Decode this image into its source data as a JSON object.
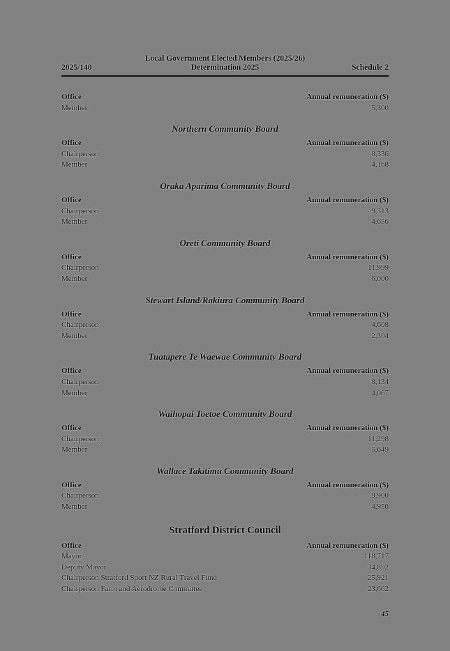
{
  "header": {
    "doc_number": "2025/140",
    "title_line1": "Local Government Elected Members (2025/26)",
    "title_line2": "Determination 2025",
    "schedule_label": "Schedule 2"
  },
  "table_columns": {
    "office": "Office",
    "remuneration": "Annual remuneration ($)"
  },
  "sections": [
    {
      "heading": "",
      "heading_style": "none",
      "rows": [
        {
          "office": "Member",
          "amount": "5,300"
        }
      ]
    },
    {
      "heading": "Northern Community Board",
      "heading_style": "board",
      "rows": [
        {
          "office": "Chairperson",
          "amount": "8,336"
        },
        {
          "office": "Member",
          "amount": "4,168"
        }
      ]
    },
    {
      "heading": "Oraka Aparima Community Board",
      "heading_style": "board",
      "rows": [
        {
          "office": "Chairperson",
          "amount": "9,313"
        },
        {
          "office": "Member",
          "amount": "4,656"
        }
      ]
    },
    {
      "heading": "Oreti Community Board",
      "heading_style": "board",
      "rows": [
        {
          "office": "Chairperson",
          "amount": "11,999"
        },
        {
          "office": "Member",
          "amount": "6,000"
        }
      ]
    },
    {
      "heading": "Stewart Island/Rakiura Community Board",
      "heading_style": "board",
      "rows": [
        {
          "office": "Chairperson",
          "amount": "4,608"
        },
        {
          "office": "Member",
          "amount": "2,304"
        }
      ]
    },
    {
      "heading": "Tuatapere Te Waewae Community Board",
      "heading_style": "board",
      "rows": [
        {
          "office": "Chairperson",
          "amount": "8,134"
        },
        {
          "office": "Member",
          "amount": "4,067"
        }
      ]
    },
    {
      "heading": "Waihopai Toetoe Community Board",
      "heading_style": "board",
      "rows": [
        {
          "office": "Chairperson",
          "amount": "11,298"
        },
        {
          "office": "Member",
          "amount": "5,649"
        }
      ]
    },
    {
      "heading": "Wallace Takitimu Community Board",
      "heading_style": "board",
      "rows": [
        {
          "office": "Chairperson",
          "amount": "9,900"
        },
        {
          "office": "Member",
          "amount": "4,950"
        }
      ]
    },
    {
      "heading": "Stratford District Council",
      "heading_style": "council",
      "rows": [
        {
          "office": "Mayor",
          "amount": "118,717"
        },
        {
          "office": "Deputy Mayor",
          "amount": "34,892"
        },
        {
          "office": "Chairperson Stratford Sport NZ Rural Travel Fund",
          "amount": "25,921"
        },
        {
          "office": "Chairperson Farm and Aerodrome Committee",
          "amount": "23,662"
        }
      ]
    }
  ],
  "footer": {
    "page_number": "45"
  },
  "colors": {
    "page_background": "#818181",
    "text": "#000000",
    "rule": "#121212"
  }
}
